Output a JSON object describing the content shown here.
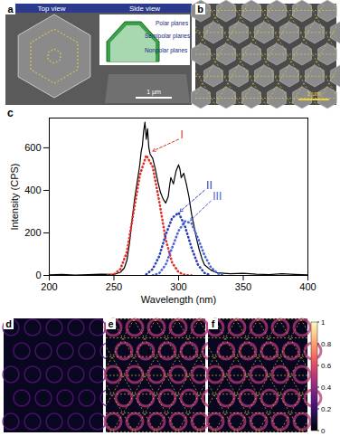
{
  "panel_a": {
    "label": "a",
    "top_view": "Top view",
    "side_view": "Side view",
    "planes": [
      "Polar planes",
      "Semipolar planes",
      "Nonpolar planes"
    ],
    "scale_bar": "1 µm"
  },
  "panel_b": {
    "label": "b",
    "scale_bar": "1 µm"
  },
  "chart_data": {
    "label": "c",
    "type": "line",
    "x_label": "Wavelength (nm)",
    "y_label": "Intensity (CPS)",
    "xlim": [
      200,
      400
    ],
    "xticks": [
      200,
      250,
      300,
      350,
      400
    ],
    "ylim": [
      0,
      740
    ],
    "yticks": [
      0,
      200,
      400,
      600
    ],
    "series": [
      {
        "color": "#000000",
        "line_style": "solid",
        "x": [
          200,
          210,
          220,
          230,
          240,
          250,
          255,
          258,
          260,
          262,
          264,
          266,
          268,
          270,
          271,
          272,
          273,
          274,
          275,
          276,
          277,
          278,
          280,
          282,
          284,
          286,
          288,
          290,
          292,
          293,
          294,
          296,
          298,
          300,
          301,
          302,
          304,
          306,
          308,
          310,
          312,
          314,
          316,
          318,
          320,
          325,
          330,
          340,
          350,
          360,
          370,
          380,
          390,
          400
        ],
        "values": [
          3,
          5,
          2,
          4,
          6,
          5,
          15,
          35,
          70,
          150,
          260,
          360,
          440,
          520,
          580,
          610,
          680,
          720,
          640,
          690,
          600,
          570,
          550,
          500,
          440,
          390,
          360,
          340,
          370,
          420,
          460,
          430,
          490,
          520,
          500,
          460,
          480,
          430,
          370,
          290,
          230,
          170,
          120,
          80,
          50,
          25,
          12,
          8,
          10,
          6,
          4,
          8,
          5,
          3
        ]
      },
      {
        "name": "I",
        "color": "#e0302a",
        "line_style": "dotted",
        "x": [
          245,
          250,
          255,
          260,
          265,
          270,
          275,
          280,
          285,
          290,
          295,
          300,
          305,
          310
        ],
        "values": [
          0,
          5,
          30,
          110,
          290,
          470,
          565,
          510,
          350,
          170,
          60,
          15,
          2,
          0
        ],
        "label": {
          "x": 300,
          "y": 640,
          "to_x": 280,
          "to_y": 585
        }
      },
      {
        "name": "II",
        "color": "#2b3fb5",
        "line_style": "dotted",
        "x": [
          275,
          280,
          285,
          290,
          295,
          300,
          305,
          310,
          315,
          320,
          325
        ],
        "values": [
          5,
          30,
          90,
          190,
          270,
          295,
          230,
          130,
          50,
          12,
          0
        ],
        "label": {
          "x": 320,
          "y": 400,
          "to_x": 301,
          "to_y": 300
        }
      },
      {
        "name": "III",
        "color": "#4a66d8",
        "line_style": "dotted",
        "x": [
          280,
          285,
          290,
          295,
          300,
          305,
          310,
          315,
          320,
          325,
          330,
          335
        ],
        "values": [
          0,
          10,
          50,
          130,
          210,
          255,
          245,
          175,
          95,
          38,
          10,
          0
        ],
        "label": {
          "x": 325,
          "y": 350,
          "to_x": 309,
          "to_y": 258
        }
      }
    ]
  },
  "panels_maps": [
    {
      "label": "d"
    },
    {
      "label": "e"
    },
    {
      "label": "f"
    }
  ],
  "colorbar": {
    "range": [
      0,
      1
    ],
    "ticks": [
      0,
      0.2,
      0.4,
      0.6,
      0.8,
      1
    ]
  }
}
